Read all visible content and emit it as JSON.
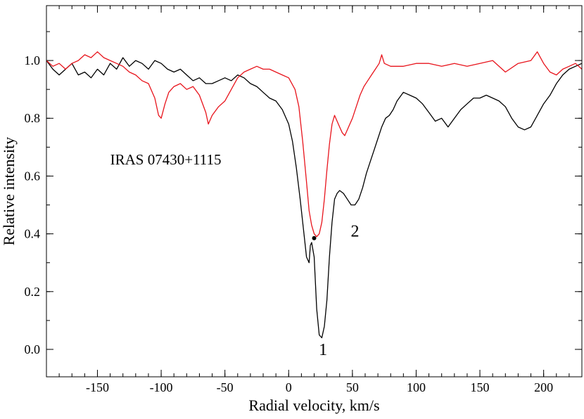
{
  "chart_data": {
    "type": "line",
    "title": "",
    "xlabel": "Radial velocity, km/s",
    "ylabel": "Relative  intensity",
    "xlim": [
      -190,
      230
    ],
    "ylim": [
      -0.095,
      1.19
    ],
    "grid": false,
    "legend": "none",
    "x_ticks": [
      {
        "value": -150,
        "label": "-150"
      },
      {
        "value": -100,
        "label": "-100"
      },
      {
        "value": -50,
        "label": "-50"
      },
      {
        "value": 0,
        "label": "0"
      },
      {
        "value": 50,
        "label": "50"
      },
      {
        "value": 100,
        "label": "100"
      },
      {
        "value": 150,
        "label": "150"
      },
      {
        "value": 200,
        "label": "200"
      }
    ],
    "x_minor_step": 10,
    "y_ticks": [
      {
        "value": 0.0,
        "label": "0.0"
      },
      {
        "value": 0.2,
        "label": "0.2"
      },
      {
        "value": 0.4,
        "label": "0.4"
      },
      {
        "value": 0.6,
        "label": "0.6"
      },
      {
        "value": 0.8,
        "label": "0.8"
      },
      {
        "value": 1.0,
        "label": "1.0"
      }
    ],
    "y_minor_step": 0.1,
    "series": [
      {
        "color": "#000000",
        "x": [
          -190,
          -185,
          -180,
          -175,
          -170,
          -165,
          -160,
          -155,
          -150,
          -145,
          -140,
          -135,
          -130,
          -125,
          -120,
          -115,
          -110,
          -105,
          -100,
          -95,
          -90,
          -85,
          -80,
          -75,
          -70,
          -65,
          -60,
          -55,
          -50,
          -45,
          -40,
          -35,
          -30,
          -25,
          -20,
          -15,
          -10,
          -5,
          0,
          3,
          6,
          9,
          12,
          14,
          16,
          17,
          18,
          20,
          22,
          24,
          26,
          28,
          30,
          32,
          34,
          36,
          38,
          40,
          43,
          46,
          49,
          52,
          55,
          58,
          61,
          64,
          67,
          70,
          73,
          76,
          79,
          82,
          85,
          90,
          95,
          100,
          105,
          110,
          115,
          120,
          125,
          130,
          135,
          140,
          145,
          150,
          155,
          160,
          165,
          170,
          175,
          180,
          185,
          190,
          195,
          200,
          205,
          210,
          215,
          220,
          225,
          230
        ],
        "values": [
          1.0,
          0.97,
          0.95,
          0.97,
          0.99,
          0.95,
          0.96,
          0.94,
          0.97,
          0.95,
          0.99,
          0.97,
          1.01,
          0.98,
          1.0,
          0.99,
          0.97,
          1.0,
          0.99,
          0.97,
          0.96,
          0.97,
          0.95,
          0.93,
          0.94,
          0.92,
          0.92,
          0.93,
          0.94,
          0.93,
          0.95,
          0.94,
          0.92,
          0.91,
          0.89,
          0.87,
          0.86,
          0.83,
          0.78,
          0.72,
          0.63,
          0.52,
          0.4,
          0.32,
          0.3,
          0.36,
          0.37,
          0.32,
          0.14,
          0.05,
          0.04,
          0.08,
          0.17,
          0.32,
          0.44,
          0.52,
          0.54,
          0.55,
          0.54,
          0.52,
          0.5,
          0.5,
          0.52,
          0.56,
          0.61,
          0.65,
          0.69,
          0.73,
          0.77,
          0.8,
          0.81,
          0.83,
          0.86,
          0.89,
          0.88,
          0.87,
          0.85,
          0.82,
          0.79,
          0.8,
          0.77,
          0.8,
          0.83,
          0.85,
          0.87,
          0.87,
          0.88,
          0.87,
          0.86,
          0.84,
          0.8,
          0.77,
          0.76,
          0.77,
          0.81,
          0.85,
          0.88,
          0.92,
          0.95,
          0.97,
          0.98,
          0.99
        ]
      },
      {
        "color": "#e8141c",
        "x": [
          -190,
          -185,
          -180,
          -175,
          -170,
          -165,
          -160,
          -155,
          -150,
          -145,
          -140,
          -135,
          -130,
          -125,
          -120,
          -115,
          -110,
          -105,
          -102,
          -100,
          -97,
          -94,
          -90,
          -85,
          -80,
          -75,
          -70,
          -65,
          -63,
          -60,
          -55,
          -50,
          -45,
          -40,
          -35,
          -30,
          -25,
          -20,
          -15,
          -10,
          -5,
          0,
          5,
          8,
          11,
          14,
          16,
          18,
          20,
          22,
          24,
          26,
          28,
          30,
          32,
          34,
          36,
          38,
          40,
          42,
          44,
          46,
          48,
          50,
          53,
          56,
          59,
          62,
          65,
          68,
          71,
          73,
          75,
          80,
          90,
          100,
          110,
          120,
          130,
          140,
          150,
          160,
          170,
          180,
          190,
          195,
          200,
          205,
          210,
          215,
          220,
          225,
          230
        ],
        "values": [
          1.0,
          0.98,
          0.99,
          0.97,
          0.99,
          1.0,
          1.02,
          1.01,
          1.03,
          1.01,
          1.0,
          0.99,
          0.98,
          0.96,
          0.95,
          0.93,
          0.92,
          0.87,
          0.81,
          0.8,
          0.85,
          0.89,
          0.91,
          0.92,
          0.9,
          0.91,
          0.88,
          0.82,
          0.78,
          0.81,
          0.84,
          0.86,
          0.9,
          0.94,
          0.96,
          0.97,
          0.98,
          0.97,
          0.97,
          0.96,
          0.95,
          0.94,
          0.9,
          0.84,
          0.72,
          0.58,
          0.48,
          0.43,
          0.4,
          0.39,
          0.4,
          0.44,
          0.52,
          0.62,
          0.71,
          0.78,
          0.81,
          0.79,
          0.77,
          0.75,
          0.74,
          0.76,
          0.78,
          0.8,
          0.84,
          0.88,
          0.91,
          0.93,
          0.95,
          0.97,
          0.99,
          1.02,
          0.99,
          0.98,
          0.98,
          0.99,
          0.99,
          0.98,
          0.99,
          0.98,
          0.99,
          1.0,
          0.96,
          0.99,
          1.0,
          1.03,
          0.99,
          0.96,
          0.95,
          0.97,
          0.98,
          0.99,
          0.97
        ]
      }
    ],
    "annotations": {
      "object_name": {
        "text": "IRAS 07430+1115",
        "x": -140,
        "y": 0.64
      },
      "label_1": {
        "text": "1",
        "x": 27,
        "y": -0.02
      },
      "label_2": {
        "text": "2",
        "x": 52,
        "y": 0.39
      },
      "dot": {
        "x": 20,
        "y": 0.385
      }
    }
  }
}
